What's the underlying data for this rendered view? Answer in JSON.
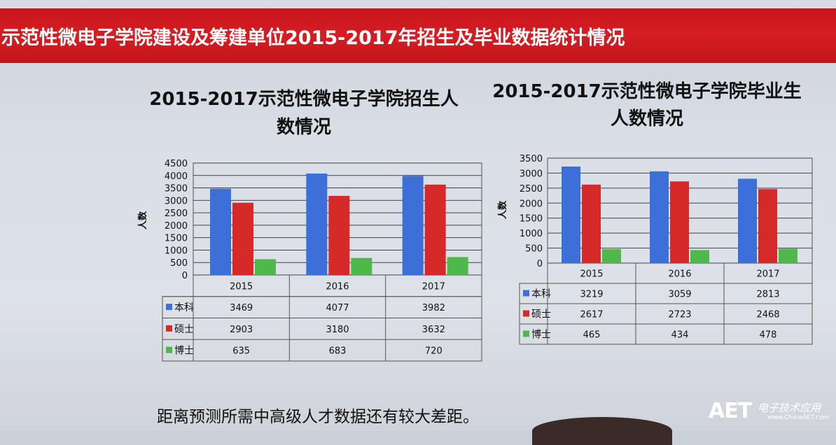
{
  "slide_title": "示范性微电子学院建设及筹建单位2015-2017年招生及毕业数据统计情况",
  "bottom_note": "距离预测所需中高级人才数据还有较大差距。",
  "watermark": {
    "logo": "AET",
    "cn": "电子技术应用",
    "url": "www.ChinaAET.com"
  },
  "colors": {
    "title_bar": "#cf1a21",
    "benke": "#3d6fd8",
    "shuoshi": "#d62a2a",
    "boshi": "#4fb84a"
  },
  "chart_data": [
    {
      "type": "bar",
      "title_line1": "2015-2017示范性微电子学院招生人",
      "title_line2": "数情况",
      "ylabel": "人数",
      "ylim": [
        0,
        4500
      ],
      "yticks": [
        "0",
        "500",
        "1000",
        "1500",
        "2000",
        "2500",
        "3000",
        "3500",
        "4000",
        "4500"
      ],
      "categories": [
        "2015",
        "2016",
        "2017"
      ],
      "series": [
        {
          "name": "本科",
          "values": [
            3469,
            4077,
            3982
          ]
        },
        {
          "name": "硕士",
          "values": [
            2903,
            3180,
            3632
          ]
        },
        {
          "name": "博士",
          "values": [
            635,
            683,
            720
          ]
        }
      ],
      "grid": true,
      "data_table": true
    },
    {
      "type": "bar",
      "title_line1": "2015-2017示范性微电子学院毕业生",
      "title_line2": "人数情况",
      "ylabel": "人数",
      "ylim": [
        0,
        3500
      ],
      "yticks": [
        "0",
        "500",
        "1000",
        "1500",
        "2000",
        "2500",
        "3000",
        "3500"
      ],
      "categories": [
        "2015",
        "2016",
        "2017"
      ],
      "series": [
        {
          "name": "本科",
          "values": [
            3219,
            3059,
            2813
          ]
        },
        {
          "name": "硕士",
          "values": [
            2617,
            2723,
            2468
          ]
        },
        {
          "name": "博士",
          "values": [
            465,
            434,
            478
          ]
        }
      ],
      "grid": true,
      "data_table": true
    }
  ]
}
